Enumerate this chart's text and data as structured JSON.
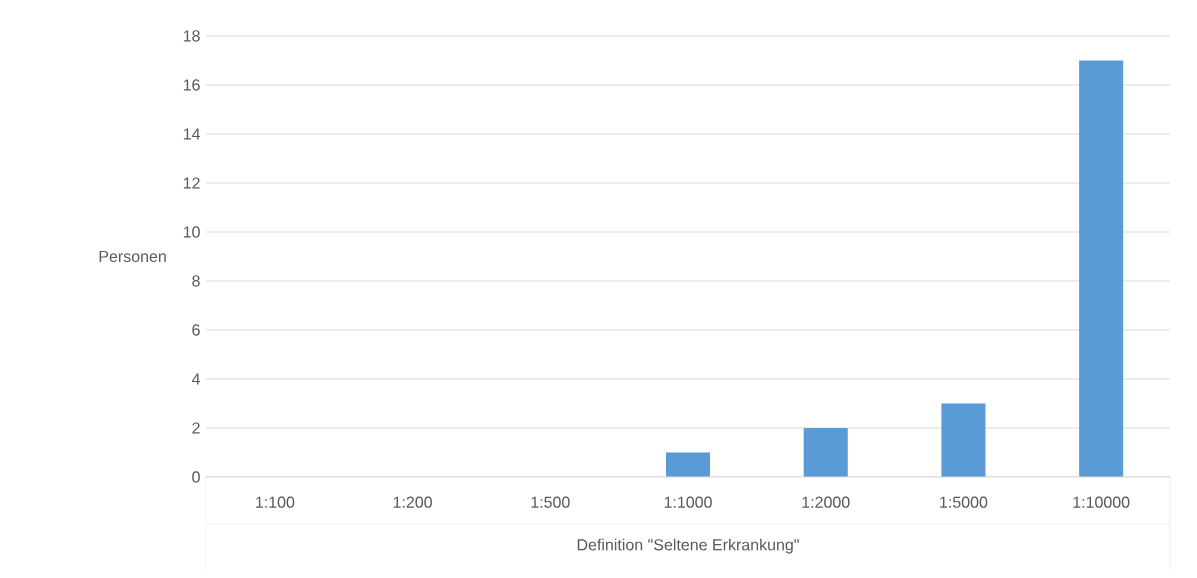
{
  "chart_data": {
    "type": "bar",
    "xlabel": "Definition \"Seltene Erkrankung\"",
    "ylabel": "Personen",
    "categories": [
      "1:100",
      "1:200",
      "1:500",
      "1:1000",
      "1:2000",
      "1:5000",
      "1:10000"
    ],
    "values": [
      0,
      0,
      0,
      1,
      2,
      3,
      17
    ],
    "color": "#5b9bd5",
    "ylim": [
      0,
      18
    ],
    "yticks": [
      0,
      2,
      4,
      6,
      8,
      10,
      12,
      14,
      16,
      18
    ],
    "grid": "y"
  }
}
